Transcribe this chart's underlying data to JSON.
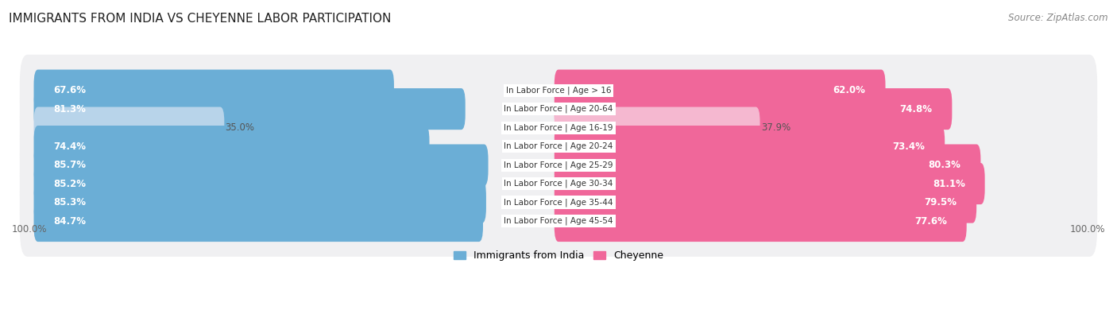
{
  "title": "IMMIGRANTS FROM INDIA VS CHEYENNE LABOR PARTICIPATION",
  "source": "Source: ZipAtlas.com",
  "categories": [
    "In Labor Force | Age > 16",
    "In Labor Force | Age 20-64",
    "In Labor Force | Age 16-19",
    "In Labor Force | Age 20-24",
    "In Labor Force | Age 25-29",
    "In Labor Force | Age 30-34",
    "In Labor Force | Age 35-44",
    "In Labor Force | Age 45-54"
  ],
  "india_values": [
    67.6,
    81.3,
    35.0,
    74.4,
    85.7,
    85.2,
    85.3,
    84.7
  ],
  "cheyenne_values": [
    62.0,
    74.8,
    37.9,
    73.4,
    80.3,
    81.1,
    79.5,
    77.6
  ],
  "india_color": "#6baed6",
  "india_color_light": "#b8d4ea",
  "cheyenne_color": "#f0679a",
  "cheyenne_color_light": "#f5b8d0",
  "row_bg_color": "#ebebeb",
  "row_bg_alt": "#f5f5f5",
  "title_fontsize": 11,
  "source_fontsize": 8.5,
  "bar_label_fontsize": 8.5,
  "category_fontsize": 7.5,
  "legend_fontsize": 9,
  "axis_label_fontsize": 8.5,
  "max_value": 100.0,
  "background_color": "#ffffff",
  "india_threshold": 50,
  "cheyenne_threshold": 50
}
